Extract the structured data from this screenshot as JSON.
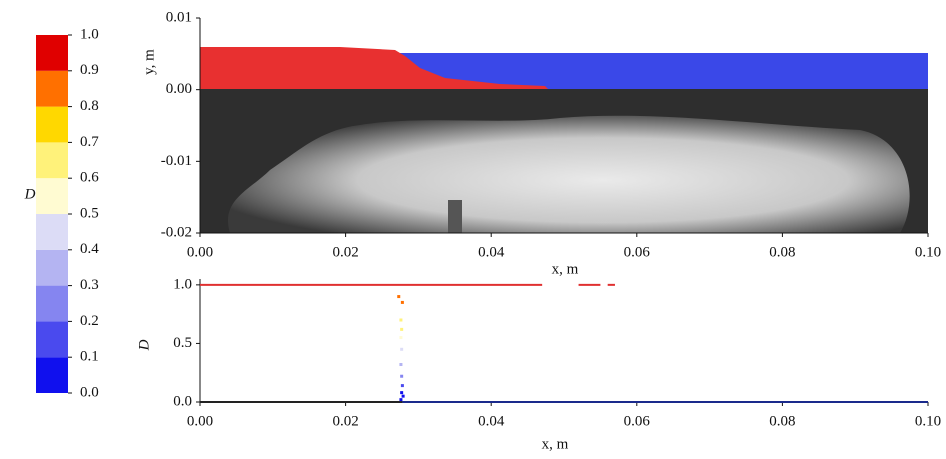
{
  "chart_data": [
    {
      "type": "colorbar",
      "label": "D",
      "yticks": [
        {
          "value": 0,
          "label": "0.0"
        },
        0.1,
        0.2,
        0.3,
        0.4,
        0.5,
        0.6,
        0.7,
        0.8,
        0.9,
        {
          "value": 1,
          "label": "1.0"
        }
      ],
      "ylim": [
        0,
        1
      ],
      "colors": [
        "#1010ee",
        "#4a4aee",
        "#8585f0",
        "#b4b4f2",
        "#dcdcf6",
        "#fffbd2",
        "#fff27a",
        "#ffd800",
        "#ff7000",
        "#e00000"
      ]
    },
    {
      "type": "image",
      "xlabel": "x, m",
      "ylabel": "y, m",
      "xlim": [
        0,
        0.1
      ],
      "xticks": [
        {
          "value": 0,
          "label": "0.00"
        },
        {
          "value": 0.02,
          "label": "0.02"
        },
        {
          "value": 0.04,
          "label": "0.04"
        },
        {
          "value": 0.06,
          "label": "0.06"
        },
        {
          "value": 0.08,
          "label": "0.08"
        },
        {
          "value": 0.1,
          "label": "0.10"
        }
      ],
      "ylim": [
        -0.02,
        0.01
      ],
      "yticks": [
        0.01,
        {
          "value": 0,
          "label": "0.00"
        },
        -0.01,
        {
          "value": -0.02,
          "label": "-0.02"
        }
      ]
    },
    {
      "type": "line",
      "xlabel": "x, m",
      "ylabel": "D",
      "xlim": [
        0,
        0.1
      ],
      "xticks": [
        {
          "value": 0,
          "label": "0.00"
        },
        {
          "value": 0.02,
          "label": "0.02"
        },
        {
          "value": 0.04,
          "label": "0.04"
        },
        {
          "value": 0.06,
          "label": "0.06"
        },
        {
          "value": 0.08,
          "label": "0.08"
        },
        {
          "value": 0.1,
          "label": "0.10"
        }
      ],
      "ylim": [
        0,
        1.05
      ],
      "yticks": [
        {
          "value": 0,
          "label": "0.0"
        },
        0.5,
        {
          "value": 1,
          "label": "1.0"
        }
      ],
      "series": [
        {
          "color": "#e03030",
          "x": [
            0,
            0.047,
            null,
            0.052,
            0.055,
            null,
            0.056,
            0.057
          ],
          "values": [
            1,
            1,
            null,
            1,
            1,
            null,
            1,
            1
          ]
        },
        {
          "color": "#222222",
          "x": [
            0,
            0.0278
          ],
          "values": [
            0,
            0
          ]
        },
        {
          "color": "#1a2a8c",
          "x": [
            0.0278,
            0.1
          ],
          "values": [
            0,
            0
          ]
        },
        {
          "type": "scatter",
          "x": [
            0.0273,
            0.0278,
            0.0276,
            0.0277,
            0.0276,
            0.0277,
            0.0276,
            0.0277,
            0.0278,
            0.0277,
            0.0279,
            0.0276
          ],
          "values": [
            0.9,
            0.85,
            0.7,
            0.62,
            0.55,
            0.45,
            0.32,
            0.22,
            0.14,
            0.08,
            0.05,
            0.02
          ]
        }
      ]
    }
  ]
}
